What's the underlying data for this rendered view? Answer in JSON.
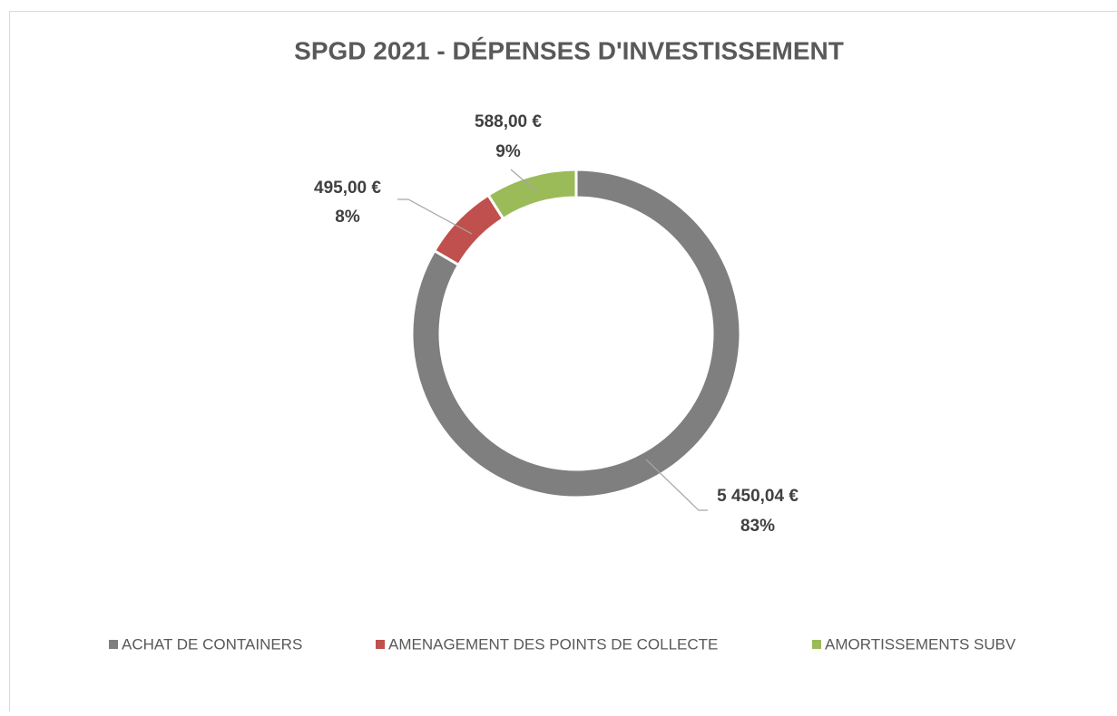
{
  "chart_data": {
    "type": "donut",
    "title": "SPGD 2021 - DÉPENSES D'INVESTISSEMENT",
    "categories": [
      "ACHAT DE CONTAINERS",
      "AMENAGEMENT DES POINTS DE COLLECTE",
      "AMORTISSEMENTS SUBV"
    ],
    "values": [
      5450.04,
      495,
      588
    ],
    "value_labels": [
      "5 450,04 €",
      "495,00 €",
      "588,00 €"
    ],
    "percent_labels": [
      "83%",
      "8%",
      "9%"
    ],
    "colors": [
      "#7f7f7f",
      "#c0504d",
      "#9bbb59"
    ],
    "legend": "bottom"
  }
}
